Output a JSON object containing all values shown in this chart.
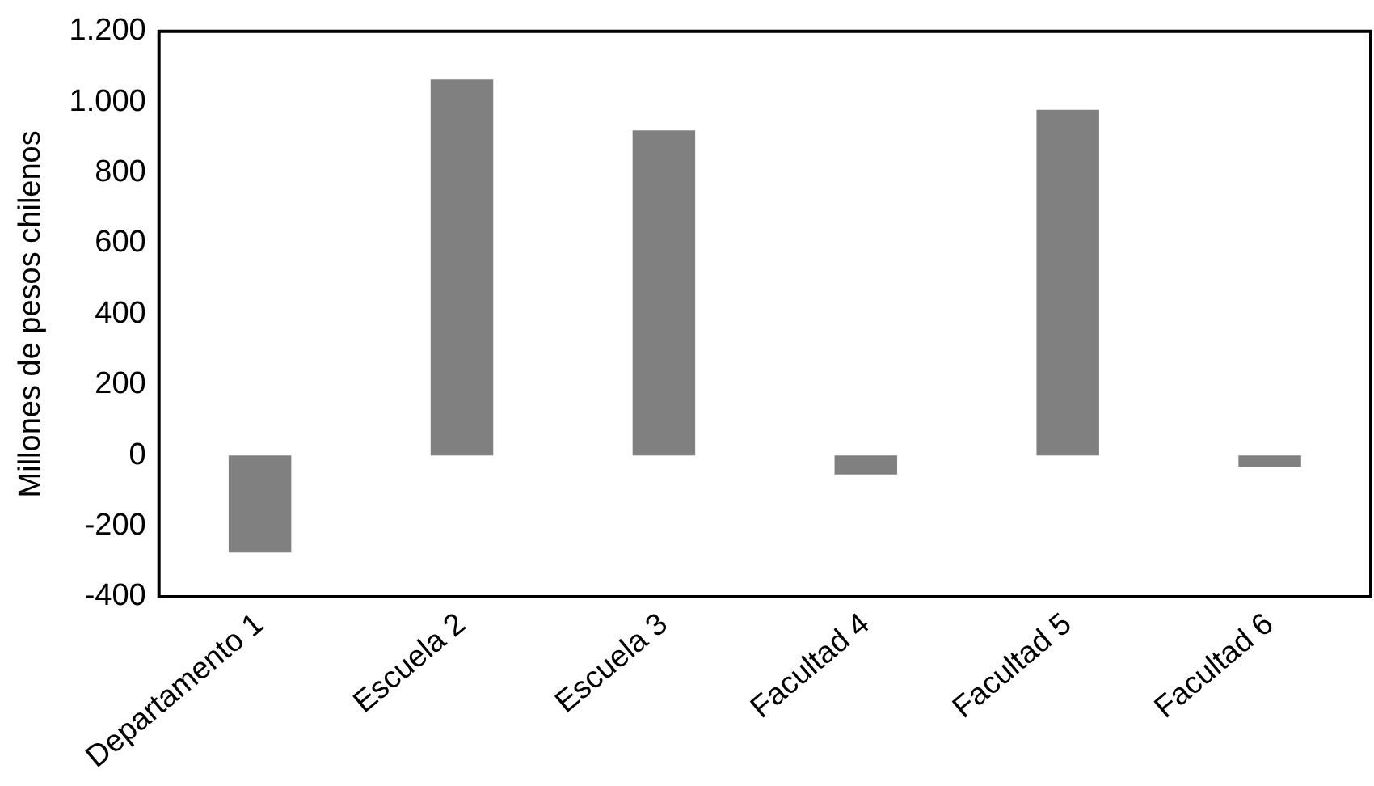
{
  "chart_data": {
    "type": "bar",
    "ylabel": "Millones de pesos chilenos",
    "categories": [
      "Departamento 1",
      "Escuela 2",
      "Escuela 3",
      "Facultad 4",
      "Facultad 5",
      "Facultad 6"
    ],
    "values": [
      -275,
      1064,
      920,
      -54,
      978,
      -32
    ],
    "color": "#808080",
    "ylim": [
      -400,
      1200
    ],
    "yticks": [
      {
        "value": -400,
        "label": "-400"
      },
      {
        "value": -200,
        "label": "-200"
      },
      0,
      200,
      400,
      600,
      800,
      {
        "value": 1000,
        "label": "1.000"
      },
      {
        "value": 1200,
        "label": "1.200"
      }
    ],
    "grid": false,
    "legend": false
  }
}
